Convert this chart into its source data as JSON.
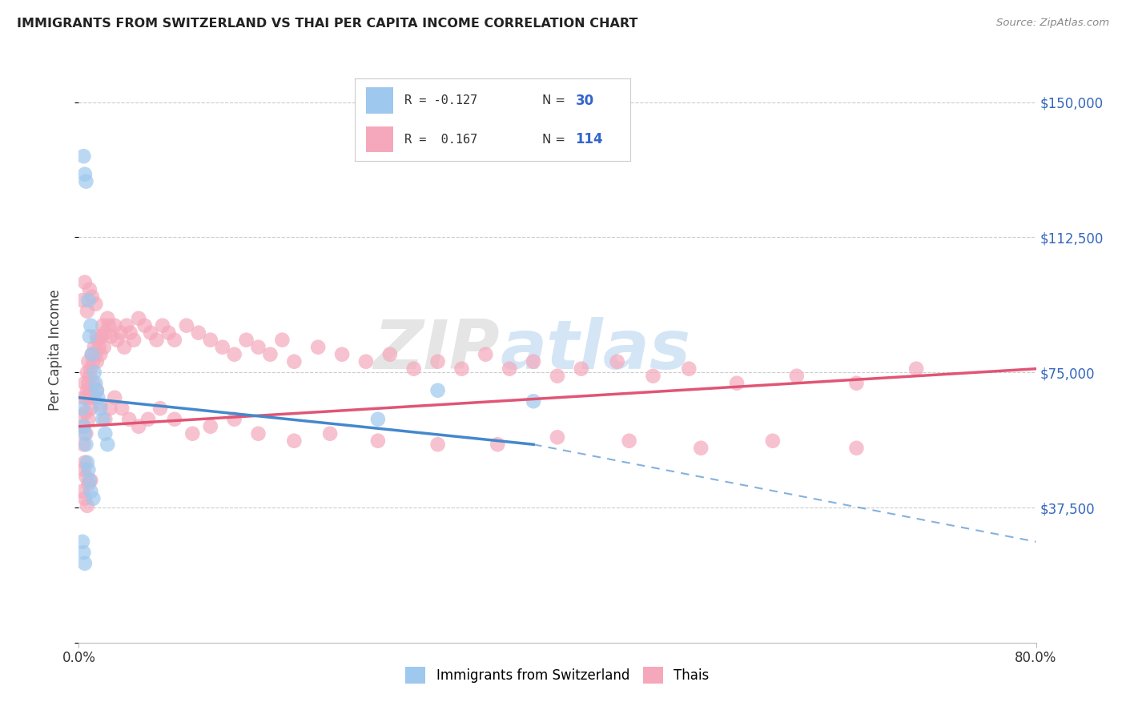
{
  "title": "IMMIGRANTS FROM SWITZERLAND VS THAI PER CAPITA INCOME CORRELATION CHART",
  "source": "Source: ZipAtlas.com",
  "ylabel": "Per Capita Income",
  "xlim": [
    0.0,
    0.8
  ],
  "ylim": [
    0,
    162500
  ],
  "yticks": [
    0,
    37500,
    75000,
    112500,
    150000
  ],
  "background_color": "#ffffff",
  "blue_color": "#9ec8ee",
  "pink_color": "#f5a8bb",
  "line_blue": "#4488cc",
  "line_pink": "#e05575",
  "right_tick_color": "#3366bb",
  "blue_scatter_x": [
    0.004,
    0.005,
    0.006,
    0.008,
    0.009,
    0.01,
    0.011,
    0.013,
    0.014,
    0.015,
    0.016,
    0.018,
    0.02,
    0.022,
    0.024,
    0.003,
    0.004,
    0.005,
    0.006,
    0.007,
    0.008,
    0.009,
    0.01,
    0.012,
    0.003,
    0.004,
    0.005,
    0.25,
    0.3,
    0.38
  ],
  "blue_scatter_y": [
    135000,
    130000,
    128000,
    95000,
    85000,
    88000,
    80000,
    75000,
    72000,
    70000,
    68000,
    65000,
    62000,
    58000,
    55000,
    65000,
    60000,
    58000,
    55000,
    50000,
    48000,
    45000,
    42000,
    40000,
    28000,
    25000,
    22000,
    62000,
    70000,
    67000
  ],
  "pink_scatter_x": [
    0.003,
    0.004,
    0.004,
    0.005,
    0.006,
    0.006,
    0.007,
    0.007,
    0.008,
    0.008,
    0.009,
    0.009,
    0.01,
    0.01,
    0.011,
    0.012,
    0.012,
    0.013,
    0.014,
    0.015,
    0.015,
    0.016,
    0.017,
    0.018,
    0.019,
    0.02,
    0.021,
    0.022,
    0.024,
    0.025,
    0.027,
    0.03,
    0.032,
    0.035,
    0.038,
    0.04,
    0.043,
    0.046,
    0.05,
    0.055,
    0.06,
    0.065,
    0.07,
    0.075,
    0.08,
    0.09,
    0.1,
    0.11,
    0.12,
    0.13,
    0.14,
    0.15,
    0.16,
    0.17,
    0.18,
    0.2,
    0.22,
    0.24,
    0.26,
    0.28,
    0.3,
    0.32,
    0.34,
    0.36,
    0.38,
    0.4,
    0.42,
    0.45,
    0.48,
    0.51,
    0.55,
    0.6,
    0.65,
    0.7,
    0.004,
    0.006,
    0.008,
    0.01,
    0.012,
    0.015,
    0.018,
    0.022,
    0.026,
    0.03,
    0.036,
    0.042,
    0.05,
    0.058,
    0.068,
    0.08,
    0.095,
    0.11,
    0.13,
    0.15,
    0.18,
    0.21,
    0.25,
    0.3,
    0.35,
    0.4,
    0.46,
    0.52,
    0.58,
    0.65,
    0.003,
    0.005,
    0.007,
    0.009,
    0.011,
    0.014,
    0.003,
    0.005,
    0.007,
    0.006,
    0.008,
    0.004,
    0.005,
    0.01
  ],
  "pink_scatter_y": [
    63000,
    68000,
    60000,
    72000,
    68000,
    64000,
    75000,
    70000,
    78000,
    72000,
    74000,
    68000,
    76000,
    70000,
    80000,
    78000,
    72000,
    82000,
    80000,
    85000,
    78000,
    84000,
    82000,
    80000,
    85000,
    88000,
    82000,
    86000,
    90000,
    88000,
    85000,
    88000,
    84000,
    86000,
    82000,
    88000,
    86000,
    84000,
    90000,
    88000,
    86000,
    84000,
    88000,
    86000,
    84000,
    88000,
    86000,
    84000,
    82000,
    80000,
    84000,
    82000,
    80000,
    84000,
    78000,
    82000,
    80000,
    78000,
    80000,
    76000,
    78000,
    76000,
    80000,
    76000,
    78000,
    74000,
    76000,
    78000,
    74000,
    76000,
    72000,
    74000,
    72000,
    76000,
    55000,
    58000,
    62000,
    65000,
    68000,
    70000,
    66000,
    62000,
    65000,
    68000,
    65000,
    62000,
    60000,
    62000,
    65000,
    62000,
    58000,
    60000,
    62000,
    58000,
    56000,
    58000,
    56000,
    55000,
    55000,
    57000,
    56000,
    54000,
    56000,
    54000,
    95000,
    100000,
    92000,
    98000,
    96000,
    94000,
    42000,
    40000,
    38000,
    46000,
    44000,
    48000,
    50000,
    45000
  ],
  "blue_line": {
    "x0": 0.0,
    "y0": 68000,
    "x1": 0.38,
    "y1": 55000,
    "x2": 0.8,
    "y2": 28000
  },
  "pink_line": {
    "x0": 0.0,
    "y0": 60000,
    "x1": 0.8,
    "y1": 76000
  }
}
